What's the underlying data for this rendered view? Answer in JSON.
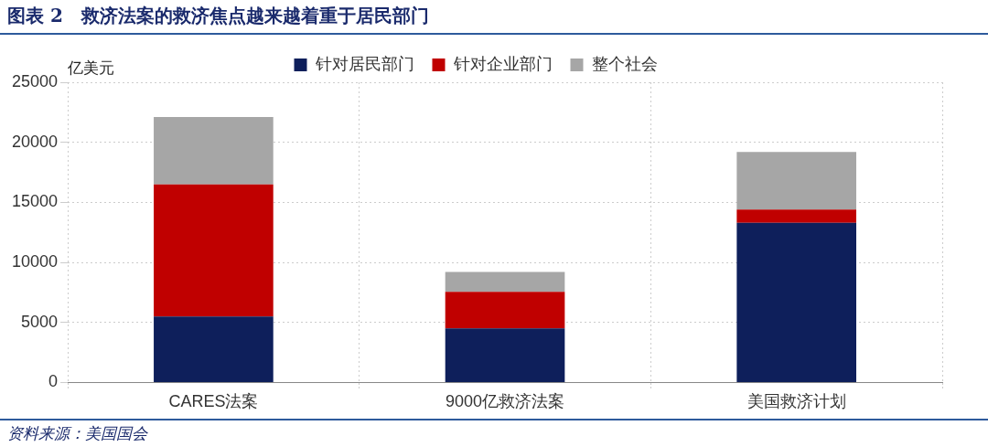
{
  "chart_data": {
    "type": "bar",
    "title": "图表 2　救济法案的救济焦点越来越着重于居民部门",
    "ylabel": "亿美元",
    "categories": [
      "CARES法案",
      "9000亿救济法案",
      "美国救济计划"
    ],
    "series": [
      {
        "name": "针对居民部门",
        "color": "#0e1f5b",
        "values": [
          5500,
          4500,
          13300
        ]
      },
      {
        "name": "针对企业部门",
        "color": "#c00000",
        "values": [
          11000,
          3050,
          1100
        ]
      },
      {
        "name": "整个社会",
        "color": "#a6a6a6",
        "values": [
          5600,
          1650,
          4800
        ]
      }
    ],
    "stacked": true,
    "ylim": [
      0,
      25000
    ],
    "yticks": [
      0,
      5000,
      10000,
      15000,
      20000,
      25000
    ],
    "grid": true,
    "legend": "top",
    "annotations": [
      "资料来源：美国国会"
    ]
  }
}
